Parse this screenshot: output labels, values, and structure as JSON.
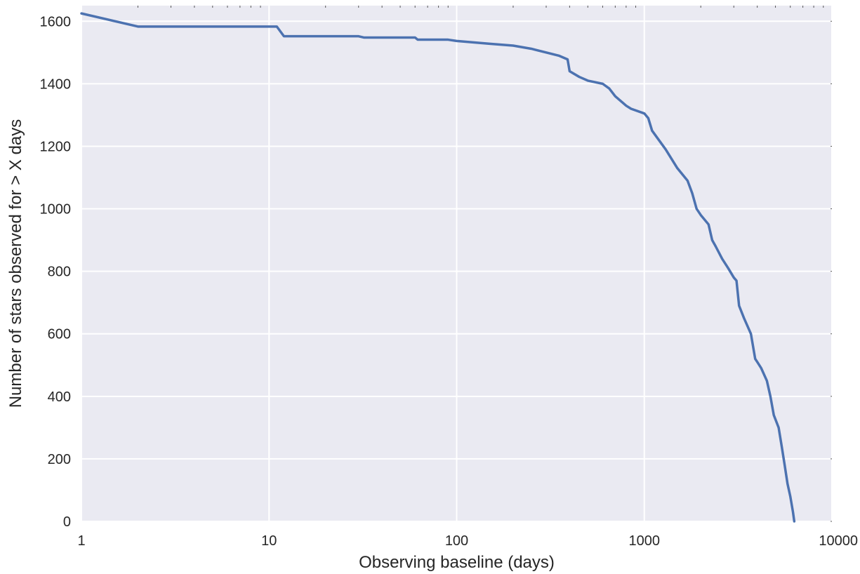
{
  "chart_data": {
    "type": "line",
    "title": "",
    "xlabel": "Observing baseline (days)",
    "ylabel": "Number of stars observed for > X days",
    "xscale": "log",
    "xlim": [
      1,
      10000
    ],
    "ylim": [
      0,
      1650
    ],
    "xticks": [
      1,
      10,
      100,
      1000,
      10000
    ],
    "xtick_labels": [
      "1",
      "10",
      "100",
      "1000",
      "10000"
    ],
    "yticks": [
      0,
      200,
      400,
      600,
      800,
      1000,
      1200,
      1400,
      1600
    ],
    "ytick_labels": [
      "0",
      "200",
      "400",
      "600",
      "800",
      "1000",
      "1200",
      "1400",
      "1600"
    ],
    "grid": true,
    "background_color": "#eaeaf2",
    "grid_color": "#ffffff",
    "line_color": "#4c72b0",
    "series": [
      {
        "x": [
          1,
          2,
          11,
          12,
          30,
          32,
          60,
          62,
          90,
          100,
          150,
          200,
          250,
          300,
          350,
          390,
          400,
          450,
          500,
          600,
          650,
          700,
          800,
          850,
          1000,
          1050,
          1100,
          1300,
          1500,
          1700,
          1800,
          1900,
          2000,
          2200,
          2300,
          2400,
          2600,
          2800,
          3000,
          3100,
          3200,
          3400,
          3700,
          3900,
          4000,
          4200,
          4500,
          4700,
          4900,
          5200,
          5400,
          5600,
          5800,
          6000,
          6200,
          6300
        ],
        "y": [
          1625,
          1583,
          1583,
          1552,
          1552,
          1548,
          1548,
          1541,
          1541,
          1537,
          1528,
          1522,
          1512,
          1500,
          1490,
          1478,
          1440,
          1422,
          1410,
          1400,
          1385,
          1360,
          1330,
          1320,
          1305,
          1290,
          1250,
          1190,
          1130,
          1090,
          1050,
          1000,
          980,
          950,
          900,
          880,
          840,
          810,
          780,
          770,
          690,
          650,
          600,
          520,
          510,
          490,
          450,
          400,
          340,
          300,
          240,
          180,
          120,
          80,
          30,
          0
        ]
      }
    ]
  }
}
